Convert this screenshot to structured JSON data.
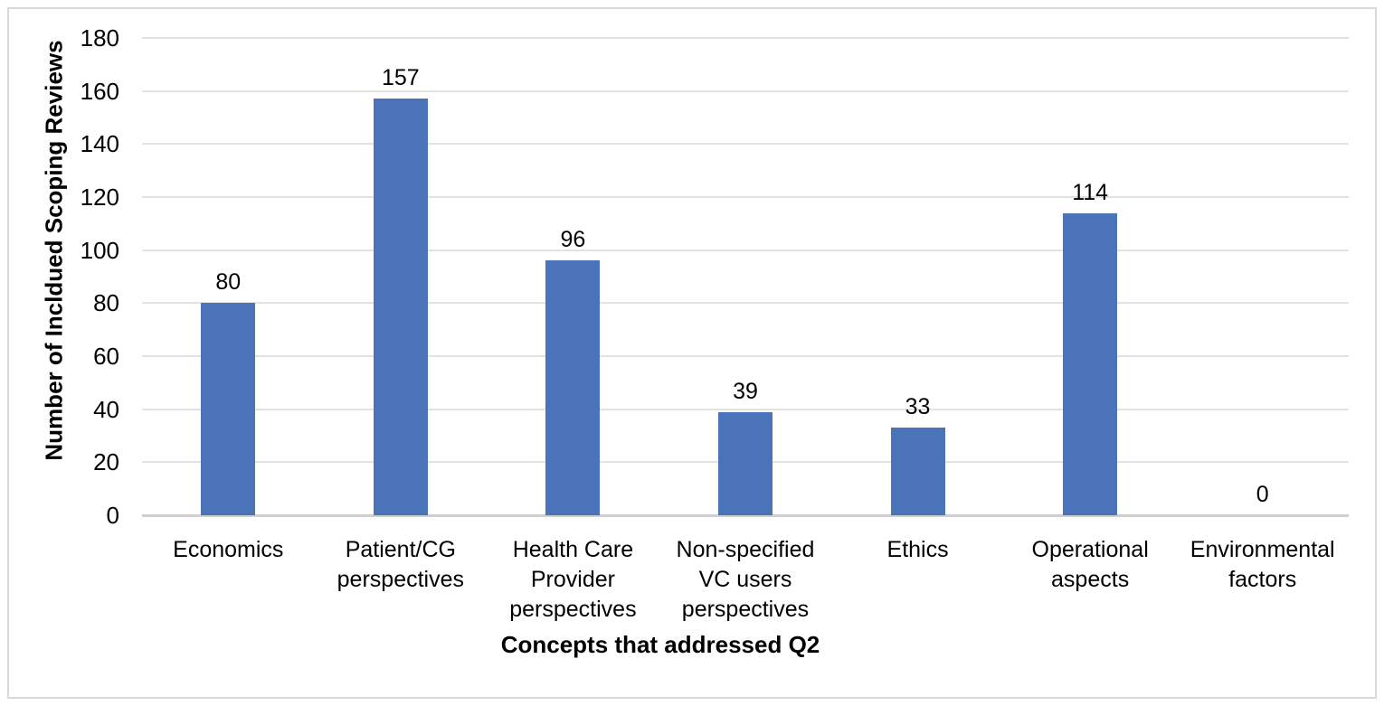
{
  "chart_data": {
    "type": "bar",
    "categories": [
      "Economics",
      "Patient/CG\nperspectives",
      "Health Care\nProvider\nperspectives",
      "Non-specified\nVC users\nperspectives",
      "Ethics",
      "Operational\naspects",
      "Environmental\nfactors"
    ],
    "values": [
      80,
      157,
      96,
      39,
      33,
      114,
      0
    ],
    "xlabel": "Concepts that addressed Q2",
    "ylabel": "Number of Incldued Scoping Reviews",
    "ylim": [
      0,
      180
    ],
    "yticks": [
      0,
      20,
      40,
      60,
      80,
      100,
      120,
      140,
      160,
      180
    ],
    "grid": true,
    "legend_position": "none",
    "data_labels": true,
    "colors": {
      "bar": "#4a73b9",
      "gridline": "#e2e2e2",
      "axis_line": "#cfcfcf",
      "text": "#000000",
      "frame_border": "#d9d9d9",
      "background": "#ffffff"
    }
  }
}
